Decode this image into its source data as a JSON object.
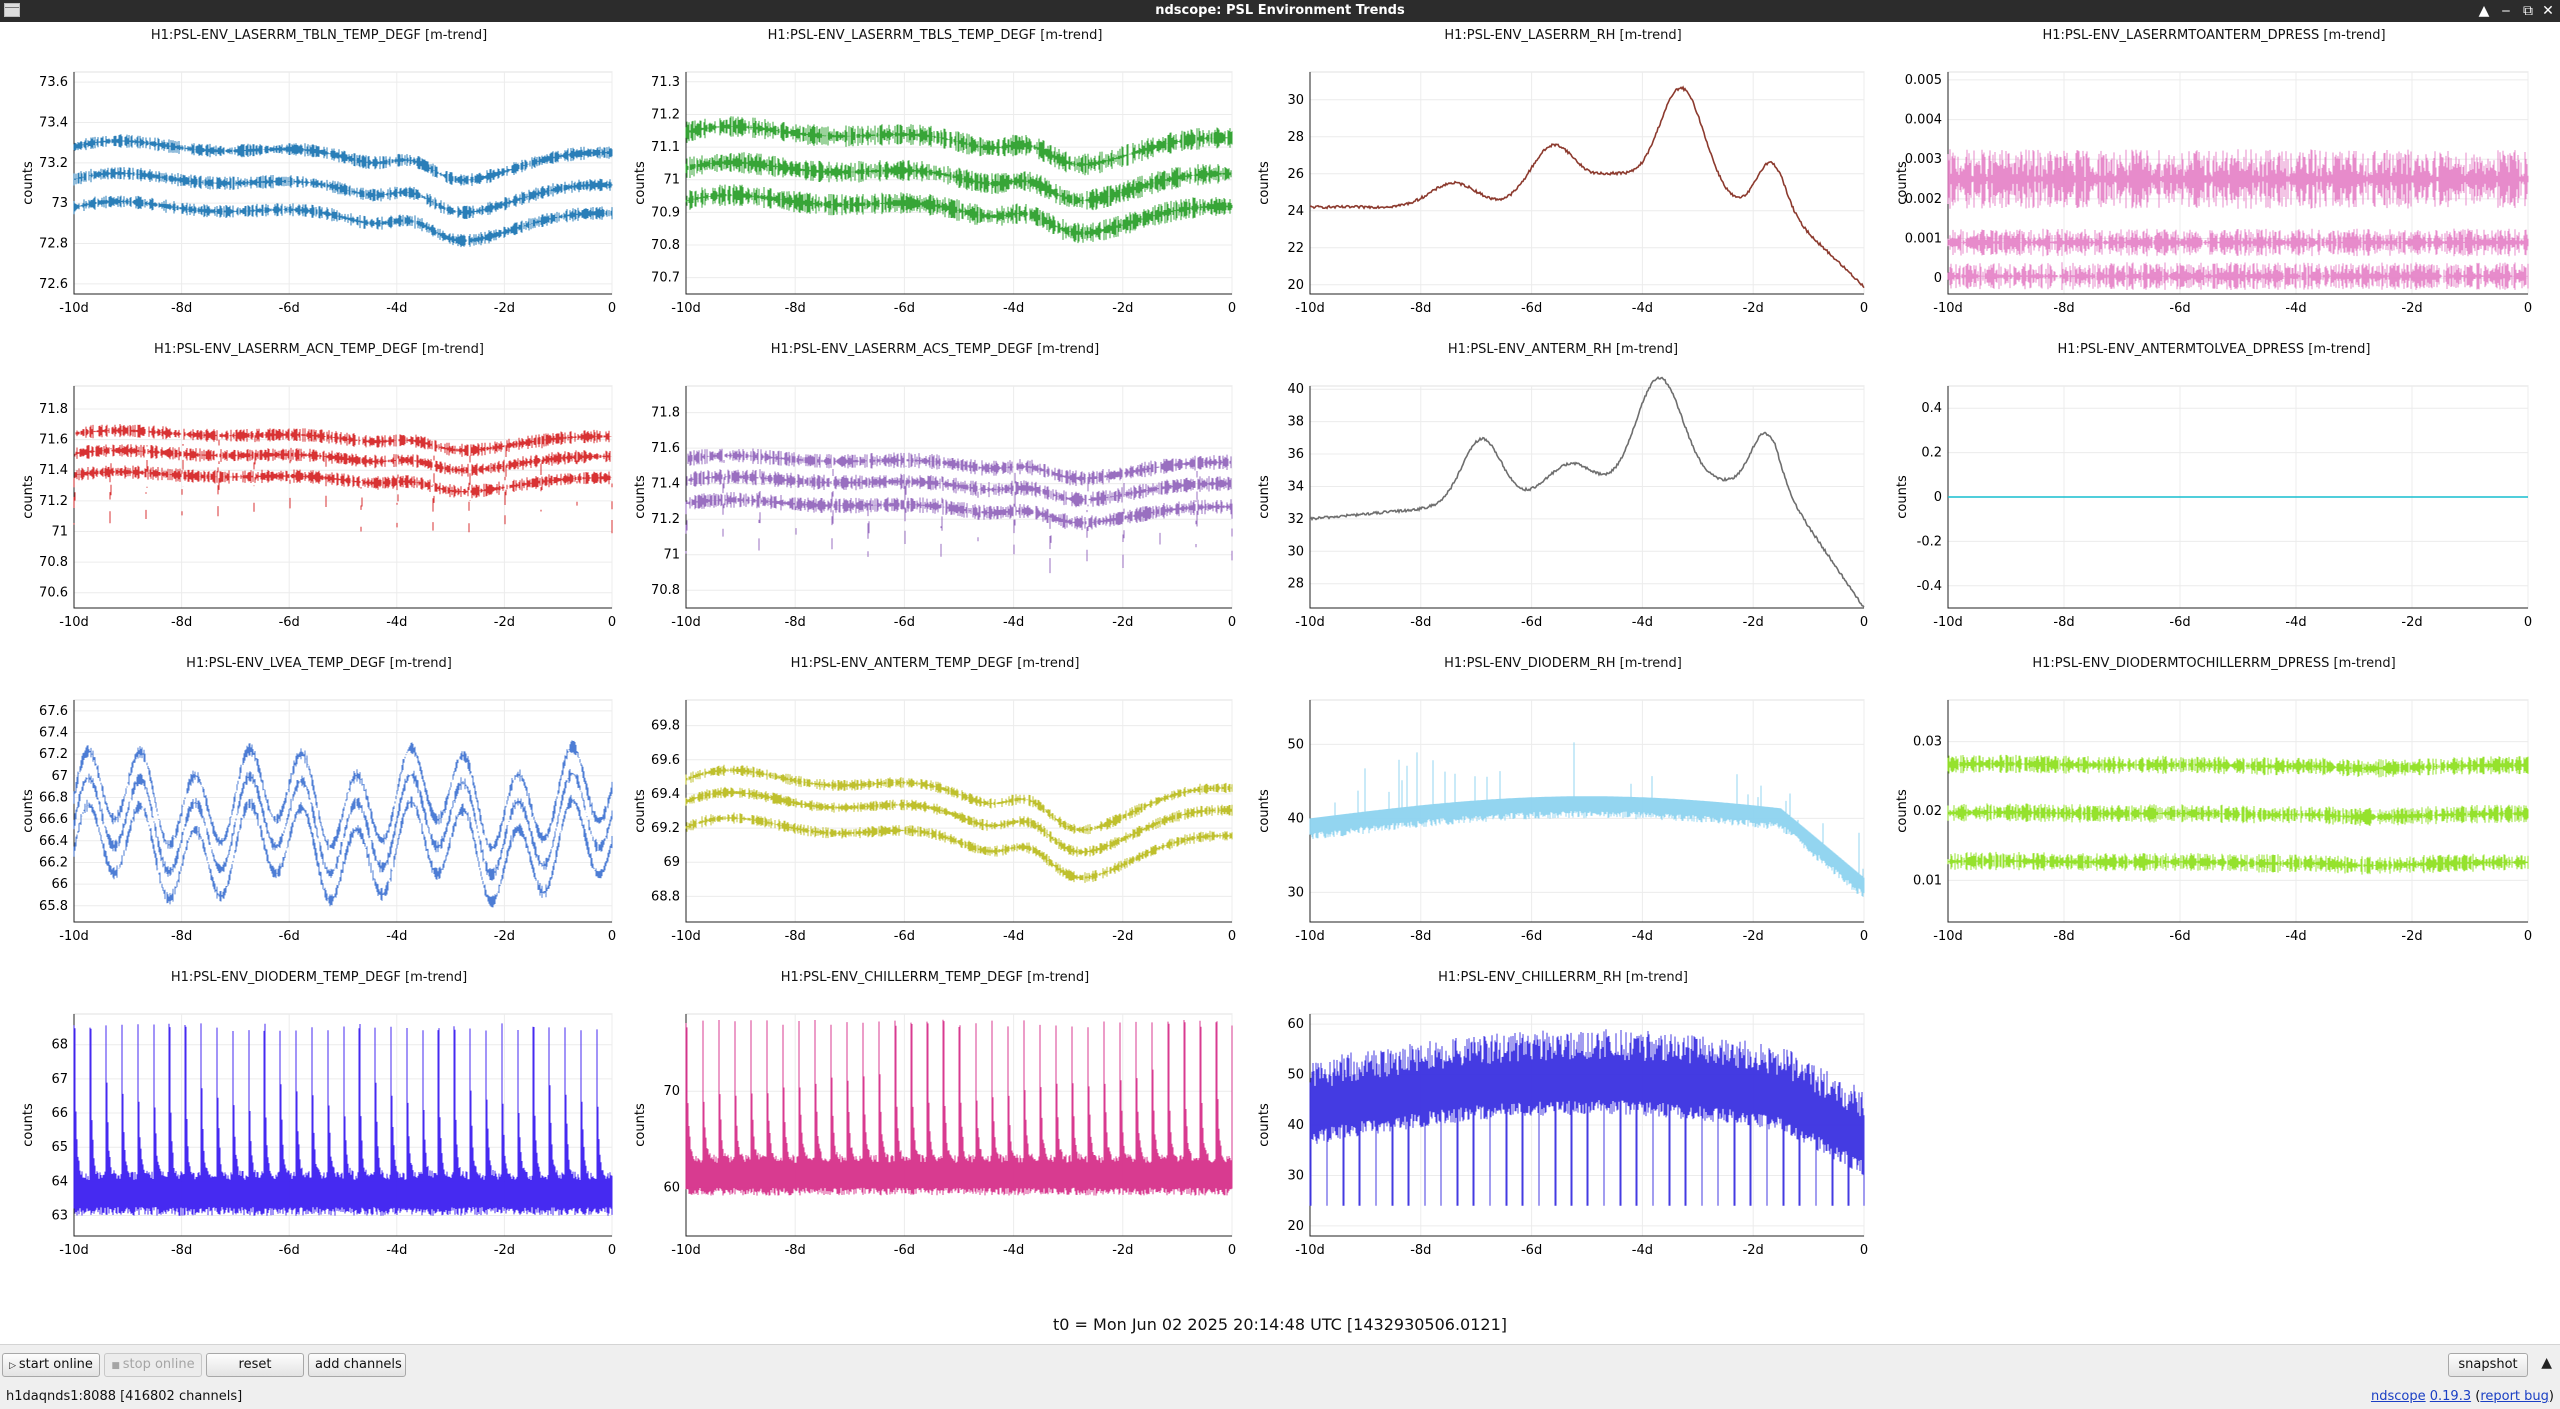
{
  "window": {
    "title": "ndscope: PSL Environment Trends",
    "controls": [
      "▲",
      "‒",
      "⧉",
      "✕"
    ]
  },
  "plots": [
    {
      "id": "p0",
      "title": "H1:PSL-ENV_LASERRM_TBLN_TEMP_DEGF [m-trend]",
      "ylabel": "counts",
      "color": "#1f77b4",
      "yticks": [
        "73.6",
        "73.4",
        "73.2",
        "73",
        "72.8",
        "72.6"
      ],
      "xticks": [
        "-10d",
        "-8d",
        "-6d",
        "-4d",
        "-2d",
        "0"
      ],
      "shape": "multi3",
      "bands": [
        73.22,
        73.06,
        72.92
      ],
      "spread": 0.03,
      "amp": 0.15,
      "range": [
        72.55,
        73.65
      ]
    },
    {
      "id": "p1",
      "title": "H1:PSL-ENV_LASERRM_TBLS_TEMP_DEGF [m-trend]",
      "ylabel": "counts",
      "color": "#2ca02c",
      "yticks": [
        "71.3",
        "71.2",
        "71.1",
        "71",
        "70.9",
        "70.8",
        "70.7"
      ],
      "xticks": [
        "-10d",
        "-8d",
        "-6d",
        "-4d",
        "-2d",
        "0"
      ],
      "shape": "multi3",
      "bands": [
        71.11,
        71.0,
        70.9
      ],
      "spread": 0.03,
      "amp": 0.09,
      "range": [
        70.65,
        71.33
      ]
    },
    {
      "id": "p2",
      "title": "H1:PSL-ENV_LASERRM_RH [m-trend]",
      "ylabel": "counts",
      "color": "#8c3a2e",
      "yticks": [
        "30",
        "28",
        "26",
        "24",
        "22",
        "20"
      ],
      "xticks": [
        "-10d",
        "-8d",
        "-6d",
        "-4d",
        "-2d",
        "0"
      ],
      "shape": "rh",
      "range": [
        19.5,
        31.5
      ]
    },
    {
      "id": "p3",
      "title": "H1:PSL-ENV_LASERRMTOANTERM_DPRESS [m-trend]",
      "ylabel": "counts",
      "color": "#e377c2",
      "yticks": [
        "0.005",
        "0.004",
        "0.003",
        "0.002",
        "0.001",
        "0"
      ],
      "xticks": [
        "-10d",
        "-8d",
        "-6d",
        "-4d",
        "-2d",
        "0"
      ],
      "shape": "dpress",
      "range": [
        -0.0004,
        0.0052
      ]
    },
    {
      "id": "p4",
      "title": "H1:PSL-ENV_LASERRM_ACN_TEMP_DEGF [m-trend]",
      "ylabel": "counts",
      "color": "#d62728",
      "yticks": [
        "71.8",
        "71.6",
        "71.4",
        "71.2",
        "71",
        "70.8",
        "70.6"
      ],
      "xticks": [
        "-10d",
        "-8d",
        "-6d",
        "-4d",
        "-2d",
        "0"
      ],
      "shape": "multi3dip",
      "bands": [
        71.6,
        71.47,
        71.33
      ],
      "spread": 0.04,
      "amp": 0.1,
      "range": [
        70.5,
        71.95
      ]
    },
    {
      "id": "p5",
      "title": "H1:PSL-ENV_LASERRM_ACS_TEMP_DEGF [m-trend]",
      "ylabel": "counts",
      "color": "#9467bd",
      "yticks": [
        "71.8",
        "71.6",
        "71.4",
        "71.2",
        "71",
        "70.8"
      ],
      "xticks": [
        "-10d",
        "-8d",
        "-6d",
        "-4d",
        "-2d",
        "0"
      ],
      "shape": "multi3dip",
      "bands": [
        71.5,
        71.38,
        71.25
      ],
      "spread": 0.04,
      "amp": 0.1,
      "range": [
        70.7,
        71.95
      ]
    },
    {
      "id": "p6",
      "title": "H1:PSL-ENV_ANTERM_RH [m-trend]",
      "ylabel": "counts",
      "color": "#6e6e6e",
      "yticks": [
        "40",
        "38",
        "36",
        "34",
        "32",
        "30",
        "28"
      ],
      "xticks": [
        "-10d",
        "-8d",
        "-6d",
        "-4d",
        "-2d",
        "0"
      ],
      "shape": "rh2",
      "range": [
        26.5,
        40.2
      ]
    },
    {
      "id": "p7",
      "title": "H1:PSL-ENV_ANTERMTOLVEA_DPRESS [m-trend]",
      "ylabel": "counts",
      "color": "#17becf",
      "yticks": [
        "0.4",
        "0.2",
        "0",
        "-0.2",
        "-0.4"
      ],
      "xticks": [
        "-10d",
        "-8d",
        "-6d",
        "-4d",
        "-2d",
        "0"
      ],
      "shape": "flat",
      "range": [
        -0.5,
        0.5
      ]
    },
    {
      "id": "p8",
      "title": "H1:PSL-ENV_LVEA_TEMP_DEGF [m-trend]",
      "ylabel": "counts",
      "color": "#3a6fd0",
      "yticks": [
        "67.6",
        "67.4",
        "67.2",
        "67",
        "66.8",
        "66.6",
        "66.4",
        "66.2",
        "66",
        "65.8"
      ],
      "xticks": [
        "-10d",
        "-8d",
        "-6d",
        "-4d",
        "-2d",
        "0"
      ],
      "shape": "lvea",
      "range": [
        65.65,
        67.7
      ]
    },
    {
      "id": "p9",
      "title": "H1:PSL-ENV_ANTERM_TEMP_DEGF [m-trend]",
      "ylabel": "counts",
      "color": "#bcbd22",
      "yticks": [
        "69.8",
        "69.6",
        "69.4",
        "69.2",
        "69",
        "68.8"
      ],
      "xticks": [
        "-10d",
        "-8d",
        "-6d",
        "-4d",
        "-2d",
        "0"
      ],
      "shape": "multi3",
      "bands": [
        69.38,
        69.25,
        69.1
      ],
      "spread": 0.03,
      "amp": 0.27,
      "range": [
        68.65,
        69.95
      ]
    },
    {
      "id": "p10",
      "title": "H1:PSL-ENV_DIODERM_RH [m-trend]",
      "ylabel": "counts",
      "color": "#8dd3ef",
      "yticks": [
        "50",
        "40",
        "30"
      ],
      "xticks": [
        "-10d",
        "-8d",
        "-6d",
        "-4d",
        "-2d",
        "0"
      ],
      "shape": "diodeRH",
      "range": [
        26,
        56
      ]
    },
    {
      "id": "p11",
      "title": "H1:PSL-ENV_DIODERMTOCHILLERRM_DPRESS [m-trend]",
      "ylabel": "counts",
      "color": "#8fe022",
      "yticks": [
        "0.03",
        "0.02",
        "0.01"
      ],
      "xticks": [
        "-10d",
        "-8d",
        "-6d",
        "-4d",
        "-2d",
        "0"
      ],
      "shape": "multi3",
      "bands": [
        0.0265,
        0.0195,
        0.0125
      ],
      "spread": 0.0012,
      "amp": 0.0005,
      "range": [
        0.004,
        0.036
      ]
    },
    {
      "id": "p12",
      "title": "H1:PSL-ENV_DIODERM_TEMP_DEGF [m-trend]",
      "ylabel": "counts",
      "color": "#3c1ff0",
      "yticks": [
        "68",
        "67",
        "66",
        "65",
        "64",
        "63"
      ],
      "xticks": [
        "-10d",
        "-8d",
        "-6d",
        "-4d",
        "-2d",
        "0"
      ],
      "shape": "spiky",
      "base": 63.4,
      "top": 68.5,
      "range": [
        62.4,
        68.9
      ]
    },
    {
      "id": "p13",
      "title": "H1:PSL-ENV_CHILLERRM_TEMP_DEGF [m-trend]",
      "ylabel": "counts",
      "color": "#d6308a",
      "yticks": [
        "70",
        "60"
      ],
      "xticks": [
        "-10d",
        "-8d",
        "-6d",
        "-4d",
        "-2d",
        "0"
      ],
      "shape": "spiky",
      "base": 60.5,
      "top": 77,
      "range": [
        55,
        78
      ]
    },
    {
      "id": "p14",
      "title": "H1:PSL-ENV_CHILLERRM_RH [m-trend]",
      "ylabel": "counts",
      "color": "#3a30e0",
      "yticks": [
        "60",
        "50",
        "40",
        "30",
        "20"
      ],
      "xticks": [
        "-10d",
        "-8d",
        "-6d",
        "-4d",
        "-2d",
        "0"
      ],
      "shape": "chillRH",
      "range": [
        18,
        62
      ]
    }
  ],
  "t0_text": "t0 = Mon Jun 02 2025 20:14:48 UTC [1432930506.0121]",
  "toolbar": {
    "start_online": "start online",
    "stop_online": "stop online",
    "reset": "reset",
    "add_channels": "add channels",
    "snapshot": "snapshot",
    "expand_icon": "▲"
  },
  "status": {
    "server": "h1daqnds1:8088  [416802 channels]",
    "ndscope_link": "ndscope",
    "version_link": "0.19.3",
    "report_bug": "report bug"
  }
}
